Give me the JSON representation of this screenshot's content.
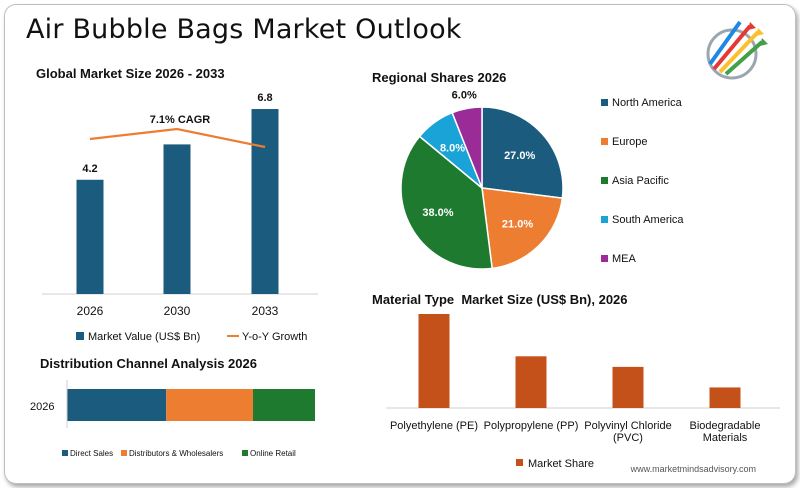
{
  "page": {
    "title": "Air Bubble Bags Market Outlook",
    "website": "www.marketmindsadvisory.com"
  },
  "colors": {
    "navy": "#1b5b7e",
    "orange": "#ed7d31",
    "green": "#1e7a2e",
    "cyan": "#1aa3d6",
    "purple": "#9b2b96",
    "rust": "#c4501a"
  },
  "chart_data": [
    {
      "id": "market-size",
      "type": "bar",
      "title": "Global Market Size 2026 - 2033",
      "categories": [
        "2026",
        "2030",
        "2033"
      ],
      "series": [
        {
          "name": "Market Value (US$ Bn)",
          "type": "bar",
          "values": [
            4.2,
            5.5,
            6.8
          ],
          "data_labels": [
            "4.2",
            "",
            "6.8"
          ]
        },
        {
          "name": "Y-o-Y Growth",
          "type": "line"
        }
      ],
      "ylim": [
        0,
        7.5
      ],
      "annotation": "7.1% CAGR",
      "legend": "bottom"
    },
    {
      "id": "regional-shares",
      "type": "pie",
      "title": "Regional Shares 2026",
      "labels": [
        "North America",
        "Europe",
        "Asia Pacific",
        "South America",
        "MEA"
      ],
      "values": [
        27.0,
        21.0,
        38.0,
        8.0,
        6.0
      ],
      "data_labels": [
        "27.0%",
        "21.0%",
        "38.0%",
        "8.0%",
        "6.0%"
      ],
      "legend": "right"
    },
    {
      "id": "distribution-channel",
      "type": "bar",
      "orientation": "horizontal-stacked",
      "title": "Distribution Channel Analysis 2026",
      "categories": [
        "2026"
      ],
      "series": [
        {
          "name": "Direct Sales",
          "values": [
            40
          ]
        },
        {
          "name": "Distributors & Wholesalers",
          "values": [
            35
          ]
        },
        {
          "name": "Online Retail",
          "values": [
            25
          ]
        }
      ],
      "legend": "bottom"
    },
    {
      "id": "material-type",
      "type": "bar",
      "title": "Material Type  Market Size (US$ Bn), 2026",
      "categories": [
        "Polyethylene (PE)",
        "Polypropylene (PP)",
        "Polyvinyl Chloride (PVC)",
        "Biodegradable Materials"
      ],
      "category_lines": [
        [
          "Polyethylene (PE)"
        ],
        [
          "Polypropylene (PP)"
        ],
        [
          "Polyvinyl Chloride",
          "(PVC)"
        ],
        [
          "Biodegradable",
          "Materials"
        ]
      ],
      "series": [
        {
          "name": "Market Share",
          "values": [
            1.6,
            0.88,
            0.7,
            0.35
          ]
        }
      ],
      "legend": "bottom"
    }
  ]
}
